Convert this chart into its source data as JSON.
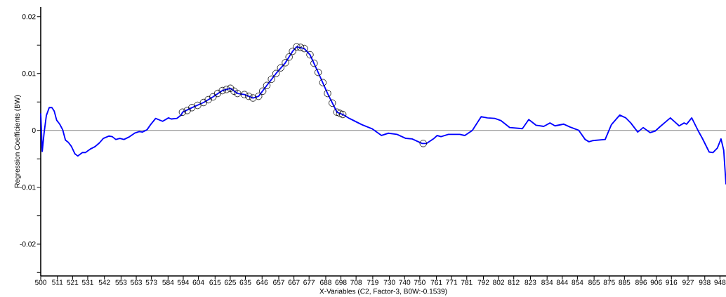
{
  "chart_data": {
    "type": "line",
    "xlabel": "X-Variables (C2, Factor-3, B0W:-0.1539)",
    "ylabel": "Regression Coefficients (BW)",
    "xlim": [
      500,
      952
    ],
    "ylim": [
      -0.0256,
      0.0217
    ],
    "xticks": [
      500,
      511,
      521,
      531,
      542,
      553,
      563,
      573,
      584,
      594,
      604,
      615,
      625,
      635,
      646,
      657,
      667,
      677,
      688,
      698,
      708,
      719,
      730,
      740,
      750,
      761,
      771,
      781,
      792,
      802,
      812,
      823,
      834,
      844,
      854,
      865,
      875,
      885,
      896,
      906,
      916,
      927,
      938,
      948
    ],
    "yticks": [
      {
        "value": -0.025,
        "label": null
      },
      -0.02,
      {
        "value": -0.015,
        "label": null
      },
      -0.01,
      {
        "value": -0.005,
        "label": null
      },
      0,
      {
        "value": 0.005,
        "label": null
      },
      0.01,
      {
        "value": 0.015,
        "label": null
      },
      0.02
    ],
    "grid": false,
    "ref_lines": [
      {
        "axis": "y",
        "value": 0,
        "color": "#a0a0a0"
      }
    ],
    "series": [
      {
        "color": "#0000ff",
        "marker": "none",
        "x": [
          500,
          501,
          502.2,
          503.7,
          505.6,
          507.4,
          508.9,
          510.5,
          512.5,
          514.5,
          516.3,
          518.2,
          520.2,
          522.5,
          524.4,
          527.5,
          529.5,
          532.6,
          535.6,
          538.7,
          541.3,
          544.9,
          547.2,
          549.5,
          552.2,
          554.9,
          558,
          561.9,
          565,
          567,
          570.1,
          572.7,
          575.8,
          580.4,
          584.3,
          586.1,
          589.7,
          592.7,
          593.5,
          599.7,
          607.4,
          613.6,
          619.8,
          625.1,
          629.8,
          634.4,
          640,
          643.7,
          649.1,
          655.2,
          661.4,
          666.1,
          668.8,
          673.8,
          677.6,
          683,
          689.2,
          695.4,
          699.2,
          703.6,
          711.9,
          718.5,
          724.8,
          729.3,
          735,
          740.8,
          745,
          751.6,
          754.5,
          759,
          761.5,
          764,
          768.9,
          776.4,
          779.7,
          784.7,
          790.5,
          794.6,
          799.5,
          803.7,
          809.4,
          817.7,
          821.9,
          826.8,
          831.8,
          835.9,
          839.2,
          845,
          849.1,
          854.9,
          859.1,
          861.6,
          864,
          872.3,
          876.4,
          881.9,
          885.9,
          889.2,
          893.8,
          897.4,
          902,
          905.4,
          908.7,
          915.3,
          921.1,
          924.4,
          926,
          929.4,
          933.5,
          936.4,
          940.9,
          943.4,
          946.3,
          948.7,
          950.5,
          952
        ],
        "values": [
          0.003,
          -0.0037,
          -0.0005,
          0.0026,
          0.004,
          0.004,
          0.0034,
          0.0018,
          0.0011,
          0.0001,
          -0.0017,
          -0.0021,
          -0.0028,
          -0.0041,
          -0.0045,
          -0.0039,
          -0.0039,
          -0.0033,
          -0.0029,
          -0.0022,
          -0.0014,
          -0.001,
          -0.0011,
          -0.0016,
          -0.0014,
          -0.0016,
          -0.0012,
          -0.0005,
          -0.0002,
          -0.0003,
          0.0001,
          0.0011,
          0.0021,
          0.0016,
          0.0022,
          0.002,
          0.0021,
          0.0027,
          0.0032,
          0.004,
          0.0049,
          0.0059,
          0.007,
          0.0074,
          0.0065,
          0.0063,
          0.0057,
          0.006,
          0.0079,
          0.01,
          0.0119,
          0.0139,
          0.0147,
          0.0144,
          0.0133,
          0.0102,
          0.0065,
          0.0032,
          0.0028,
          0.0021,
          0.001,
          0.0003,
          -0.0009,
          -0.0005,
          -0.0007,
          -0.0014,
          -0.0015,
          -0.0023,
          -0.0023,
          -0.0015,
          -0.0009,
          -0.0011,
          -0.0007,
          -0.0007,
          -0.0009,
          0,
          0.0024,
          0.0022,
          0.0021,
          0.0017,
          0.0005,
          0.0003,
          0.0019,
          0.0009,
          0.0007,
          0.0013,
          0.0008,
          0.0011,
          0.0006,
          0,
          -0.0016,
          -0.002,
          -0.0018,
          -0.0016,
          0.001,
          0.0027,
          0.0022,
          0.0013,
          -0.0003,
          0.0005,
          -0.0004,
          -0.0001,
          0.0007,
          0.0022,
          0.0008,
          0.0013,
          0.0011,
          0.0022,
          0,
          -0.0014,
          -0.0038,
          -0.0039,
          -0.0031,
          -0.0015,
          -0.0035,
          -0.0095
        ]
      },
      {
        "type": "scatter",
        "color": "#000000",
        "marker": "circle",
        "x": [
          593.5,
          596.6,
          599.7,
          603.5,
          607.4,
          610.5,
          613.6,
          616.7,
          619.8,
          622.5,
          625.1,
          627.5,
          629.8,
          634.4,
          637.2,
          640,
          643.7,
          646.4,
          649.1,
          652.2,
          655.2,
          658.3,
          661.4,
          663.8,
          666.1,
          668.8,
          671.3,
          673.8,
          677.6,
          680.3,
          683,
          686.1,
          689.2,
          692.3,
          695.4,
          697.3,
          699.2,
          752.3
        ],
        "values": [
          0.0032,
          0.0035,
          0.004,
          0.0044,
          0.0049,
          0.0054,
          0.0059,
          0.0065,
          0.007,
          0.0072,
          0.0074,
          0.0069,
          0.0065,
          0.0063,
          0.006,
          0.0057,
          0.006,
          0.0069,
          0.0079,
          0.009,
          0.01,
          0.011,
          0.0119,
          0.0129,
          0.0139,
          0.0147,
          0.0146,
          0.0144,
          0.0133,
          0.0118,
          0.0102,
          0.0084,
          0.0065,
          0.0048,
          0.0032,
          0.003,
          0.0028,
          -0.0023
        ]
      }
    ]
  }
}
